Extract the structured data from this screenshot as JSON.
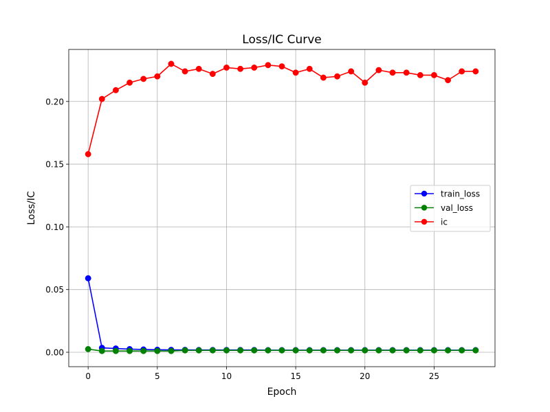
{
  "chart_data": {
    "type": "line",
    "title": "Loss/IC Curve",
    "xlabel": "Epoch",
    "ylabel": "Loss/IC",
    "xlim": [
      -1.4,
      29.4
    ],
    "ylim": [
      -0.0115,
      0.2415
    ],
    "xticks": [
      0,
      5,
      10,
      15,
      20,
      25
    ],
    "yticks": [
      0.0,
      0.05,
      0.1,
      0.15,
      0.2
    ],
    "ytick_labels": [
      "0.00",
      "0.05",
      "0.10",
      "0.15",
      "0.20"
    ],
    "grid": true,
    "legend_position": "center-right",
    "x": [
      0,
      1,
      2,
      3,
      4,
      5,
      6,
      7,
      8,
      9,
      10,
      11,
      12,
      13,
      14,
      15,
      16,
      17,
      18,
      19,
      20,
      21,
      22,
      23,
      24,
      25,
      26,
      27,
      28
    ],
    "series": [
      {
        "name": "train_loss",
        "color": "#0000ff",
        "values": [
          0.059,
          0.0035,
          0.003,
          0.0025,
          0.0022,
          0.002,
          0.0019,
          0.0019,
          0.0018,
          0.0018,
          0.0018,
          0.0018,
          0.0018,
          0.0017,
          0.0017,
          0.0017,
          0.0017,
          0.0017,
          0.0017,
          0.0017,
          0.0017,
          0.0017,
          0.0017,
          0.0017,
          0.0017,
          0.0017,
          0.0017,
          0.0017,
          0.0017
        ]
      },
      {
        "name": "val_loss",
        "color": "#008000",
        "values": [
          0.0025,
          0.001,
          0.001,
          0.001,
          0.001,
          0.001,
          0.001,
          0.0015,
          0.0015,
          0.0015,
          0.0015,
          0.0015,
          0.0015,
          0.0015,
          0.0015,
          0.0015,
          0.0015,
          0.0015,
          0.0015,
          0.0015,
          0.0015,
          0.0015,
          0.0015,
          0.0015,
          0.0015,
          0.0015,
          0.0015,
          0.0015,
          0.0015
        ]
      },
      {
        "name": "ic",
        "color": "#ff0000",
        "values": [
          0.158,
          0.202,
          0.209,
          0.215,
          0.218,
          0.22,
          0.23,
          0.224,
          0.226,
          0.222,
          0.227,
          0.226,
          0.227,
          0.229,
          0.228,
          0.223,
          0.226,
          0.219,
          0.22,
          0.224,
          0.215,
          0.225,
          0.223,
          0.223,
          0.221,
          0.221,
          0.217,
          0.224,
          0.224
        ]
      }
    ]
  }
}
